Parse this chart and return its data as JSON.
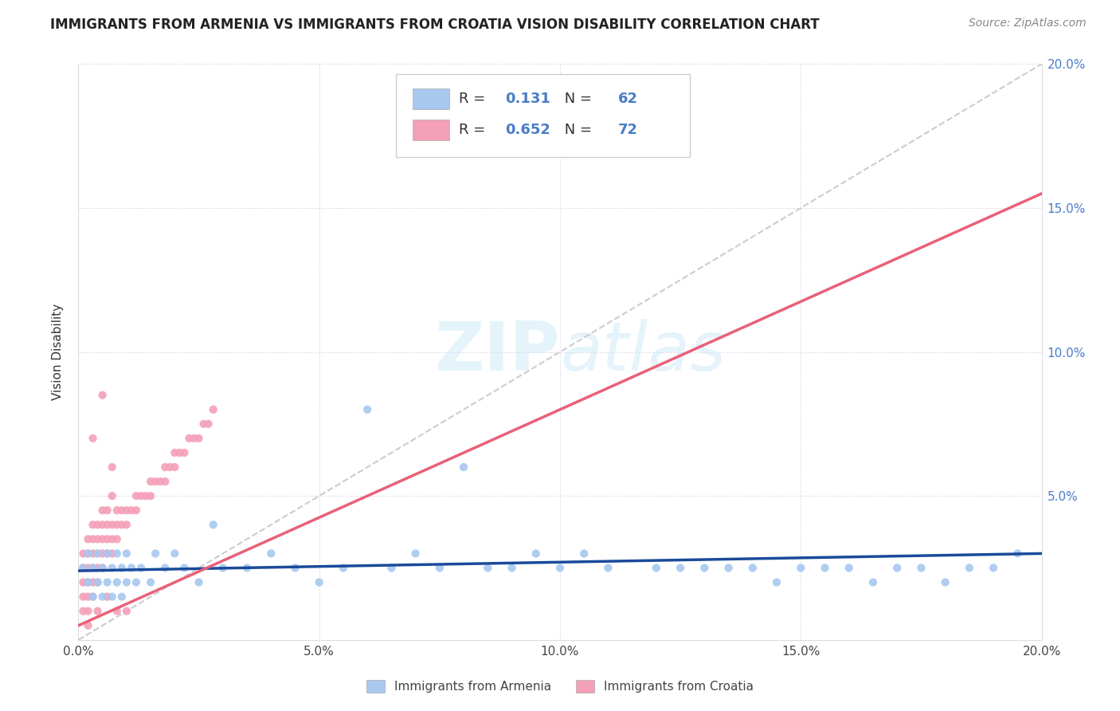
{
  "title": "IMMIGRANTS FROM ARMENIA VS IMMIGRANTS FROM CROATIA VISION DISABILITY CORRELATION CHART",
  "source": "Source: ZipAtlas.com",
  "ylabel": "Vision Disability",
  "xlim": [
    0.0,
    0.2
  ],
  "ylim": [
    0.0,
    0.2
  ],
  "xtick_labels": [
    "0.0%",
    "5.0%",
    "10.0%",
    "15.0%",
    "20.0%"
  ],
  "xtick_values": [
    0.0,
    0.05,
    0.1,
    0.15,
    0.2
  ],
  "ytick_labels_right": [
    "",
    "5.0%",
    "10.0%",
    "15.0%",
    "20.0%"
  ],
  "ytick_values": [
    0.0,
    0.05,
    0.1,
    0.15,
    0.2
  ],
  "R_armenia": 0.131,
  "N_armenia": 62,
  "R_croatia": 0.652,
  "N_croatia": 72,
  "color_armenia": "#a8c8f0",
  "color_croatia": "#f4a0b8",
  "line_color_armenia": "#1a4a9a",
  "line_color_croatia": "#e8607a",
  "line_color_diagonal": "#cccccc",
  "watermark": "ZIPatlas",
  "legend_armenia": "Immigrants from Armenia",
  "legend_croatia": "Immigrants from Croatia",
  "arm_x": [
    0.001,
    0.002,
    0.002,
    0.003,
    0.003,
    0.004,
    0.004,
    0.005,
    0.005,
    0.006,
    0.006,
    0.007,
    0.007,
    0.008,
    0.008,
    0.009,
    0.009,
    0.01,
    0.01,
    0.011,
    0.012,
    0.013,
    0.015,
    0.016,
    0.018,
    0.02,
    0.022,
    0.025,
    0.028,
    0.03,
    0.035,
    0.04,
    0.045,
    0.05,
    0.055,
    0.06,
    0.065,
    0.07,
    0.075,
    0.08,
    0.085,
    0.09,
    0.095,
    0.1,
    0.105,
    0.11,
    0.12,
    0.125,
    0.13,
    0.135,
    0.14,
    0.145,
    0.15,
    0.155,
    0.16,
    0.165,
    0.17,
    0.175,
    0.18,
    0.185,
    0.19,
    0.195
  ],
  "arm_y": [
    0.025,
    0.02,
    0.03,
    0.015,
    0.025,
    0.02,
    0.03,
    0.025,
    0.015,
    0.02,
    0.03,
    0.025,
    0.015,
    0.02,
    0.03,
    0.025,
    0.015,
    0.02,
    0.03,
    0.025,
    0.02,
    0.025,
    0.02,
    0.03,
    0.025,
    0.03,
    0.025,
    0.02,
    0.04,
    0.025,
    0.025,
    0.03,
    0.025,
    0.02,
    0.025,
    0.08,
    0.025,
    0.03,
    0.025,
    0.06,
    0.025,
    0.025,
    0.03,
    0.025,
    0.03,
    0.025,
    0.025,
    0.025,
    0.025,
    0.025,
    0.025,
    0.02,
    0.025,
    0.025,
    0.025,
    0.02,
    0.025,
    0.025,
    0.02,
    0.025,
    0.025,
    0.03
  ],
  "cro_x": [
    0.001,
    0.001,
    0.001,
    0.001,
    0.001,
    0.002,
    0.002,
    0.002,
    0.002,
    0.002,
    0.002,
    0.003,
    0.003,
    0.003,
    0.003,
    0.003,
    0.003,
    0.004,
    0.004,
    0.004,
    0.004,
    0.004,
    0.005,
    0.005,
    0.005,
    0.005,
    0.005,
    0.006,
    0.006,
    0.006,
    0.006,
    0.007,
    0.007,
    0.007,
    0.007,
    0.008,
    0.008,
    0.008,
    0.009,
    0.009,
    0.01,
    0.01,
    0.011,
    0.012,
    0.012,
    0.013,
    0.014,
    0.015,
    0.015,
    0.016,
    0.017,
    0.018,
    0.018,
    0.019,
    0.02,
    0.02,
    0.021,
    0.022,
    0.023,
    0.024,
    0.025,
    0.026,
    0.027,
    0.028,
    0.005,
    0.003,
    0.007,
    0.01,
    0.008,
    0.006,
    0.004,
    0.002
  ],
  "cro_y": [
    0.015,
    0.02,
    0.025,
    0.03,
    0.01,
    0.015,
    0.02,
    0.025,
    0.03,
    0.035,
    0.01,
    0.015,
    0.02,
    0.025,
    0.03,
    0.035,
    0.04,
    0.02,
    0.025,
    0.03,
    0.035,
    0.04,
    0.025,
    0.03,
    0.035,
    0.04,
    0.045,
    0.03,
    0.035,
    0.04,
    0.045,
    0.03,
    0.035,
    0.04,
    0.05,
    0.035,
    0.04,
    0.045,
    0.04,
    0.045,
    0.04,
    0.045,
    0.045,
    0.045,
    0.05,
    0.05,
    0.05,
    0.05,
    0.055,
    0.055,
    0.055,
    0.055,
    0.06,
    0.06,
    0.06,
    0.065,
    0.065,
    0.065,
    0.07,
    0.07,
    0.07,
    0.075,
    0.075,
    0.08,
    0.085,
    0.07,
    0.06,
    0.01,
    0.01,
    0.015,
    0.01,
    0.005
  ]
}
